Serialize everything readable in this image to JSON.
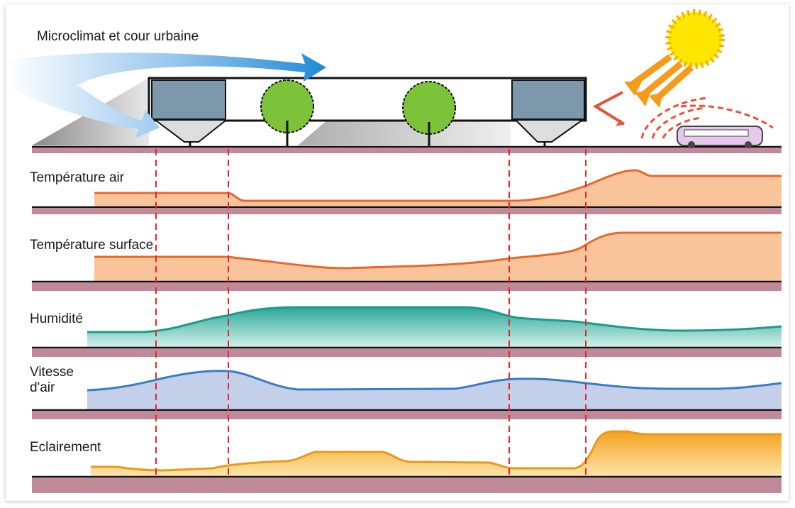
{
  "title": "Microclimat et cour urbaine",
  "panels": [
    {
      "lines": [
        "Température air"
      ]
    },
    {
      "lines": [
        "Température surface"
      ]
    },
    {
      "lines": [
        "Humidité"
      ]
    },
    {
      "lines": [
        "Vitesse",
        "d'air"
      ]
    },
    {
      "lines": [
        "Eclairement"
      ]
    }
  ]
}
